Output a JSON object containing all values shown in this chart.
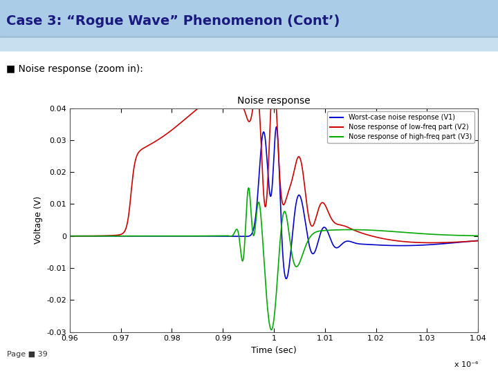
{
  "title_main": "Case 3: “Rogue Wave” Phenomenon (Cont’)",
  "subtitle": "■ Noise response (zoom in):",
  "plot_title": "Noise response",
  "xlabel": "Time (sec)",
  "ylabel": "Voltage (V)",
  "xscale_label": "x 10⁻⁶",
  "xlim": [
    0.96,
    1.04
  ],
  "ylim": [
    -0.03,
    0.04
  ],
  "yticks": [
    -0.03,
    -0.02,
    -0.01,
    0,
    0.01,
    0.02,
    0.03,
    0.04
  ],
  "xticks": [
    0.96,
    0.97,
    0.98,
    0.99,
    1.0,
    1.01,
    1.02,
    1.03,
    1.04
  ],
  "legend_labels": [
    "Worst-case noise response (V1)",
    "Nose response of low-freq part (V2)",
    "Nose response of high-freq part (V3)"
  ],
  "line_colors": [
    "#0000cc",
    "#cc0000",
    "#00aa00"
  ],
  "header_bg_top": "#6fa8d0",
  "header_bg_bot": "#c5ddf0",
  "header_text_color": "#1a1a80",
  "page_label": "Page ■ 39",
  "background_color": "#ffffff"
}
